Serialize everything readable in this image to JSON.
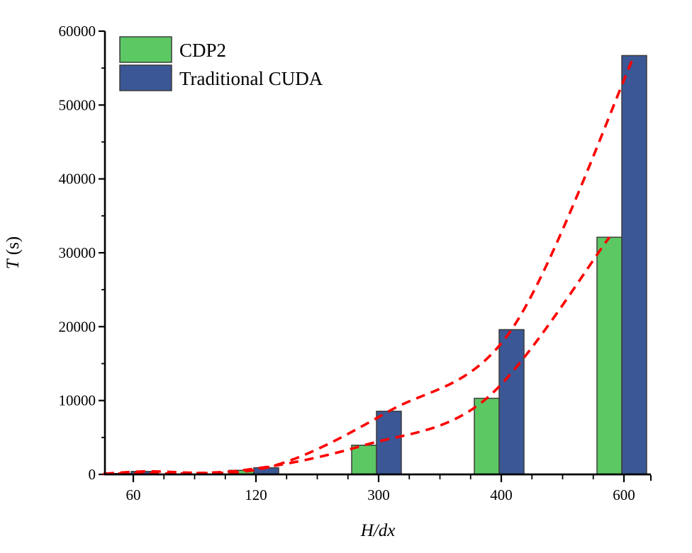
{
  "chart_data": {
    "type": "bar",
    "title": "",
    "xlabel": "H/dx",
    "ylabel": "T (s)",
    "ylabel_parts": {
      "italic": "T",
      "rest": " (s)"
    },
    "categories": [
      "60",
      "120",
      "300",
      "400",
      "600"
    ],
    "series": [
      {
        "name": "CDP2",
        "color": "#5cc863",
        "values": [
          120,
          550,
          3950,
          10300,
          32100
        ]
      },
      {
        "name": "Traditional CUDA",
        "color": "#3b5795",
        "values": [
          400,
          900,
          8550,
          19600,
          56700
        ]
      }
    ],
    "axes": {
      "y": {
        "min": 0,
        "max": 60000,
        "major_step": 10000,
        "minor_step": 5000,
        "tick_labels": [
          "0",
          "10000",
          "20000",
          "30000",
          "40000",
          "50000",
          "60000"
        ]
      },
      "x": {
        "tick_labels": [
          "60",
          "120",
          "300",
          "400",
          "600"
        ],
        "minor_divisions_per_category": 4
      }
    },
    "trend_lines": {
      "color": "#ff0000",
      "style": "dashed",
      "description": "exponential-like guide curves through the bar tops of each series"
    },
    "legend": {
      "position": "top-left-inside"
    },
    "grid": false,
    "bar_outline_color": "#3c3c3c",
    "axis_color": "#000000",
    "background": "#ffffff"
  }
}
